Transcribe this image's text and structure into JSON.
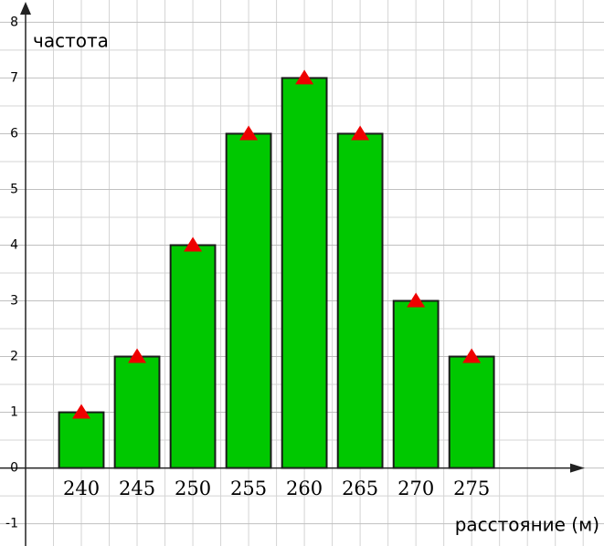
{
  "chart_data": {
    "type": "bar",
    "y_label": "частота",
    "x_label": "расстояние (м)",
    "categories": [
      "240",
      "245",
      "250",
      "255",
      "260",
      "265",
      "270",
      "275"
    ],
    "values": [
      1,
      2,
      4,
      6,
      7,
      6,
      3,
      2
    ],
    "color": "#00c800",
    "marker_color": "#ee0000",
    "markers": true,
    "ylim": [
      -1.4,
      8.4
    ],
    "yticks": [
      -1,
      0,
      1,
      2,
      3,
      4,
      5,
      6,
      7,
      8
    ],
    "grid": true
  }
}
